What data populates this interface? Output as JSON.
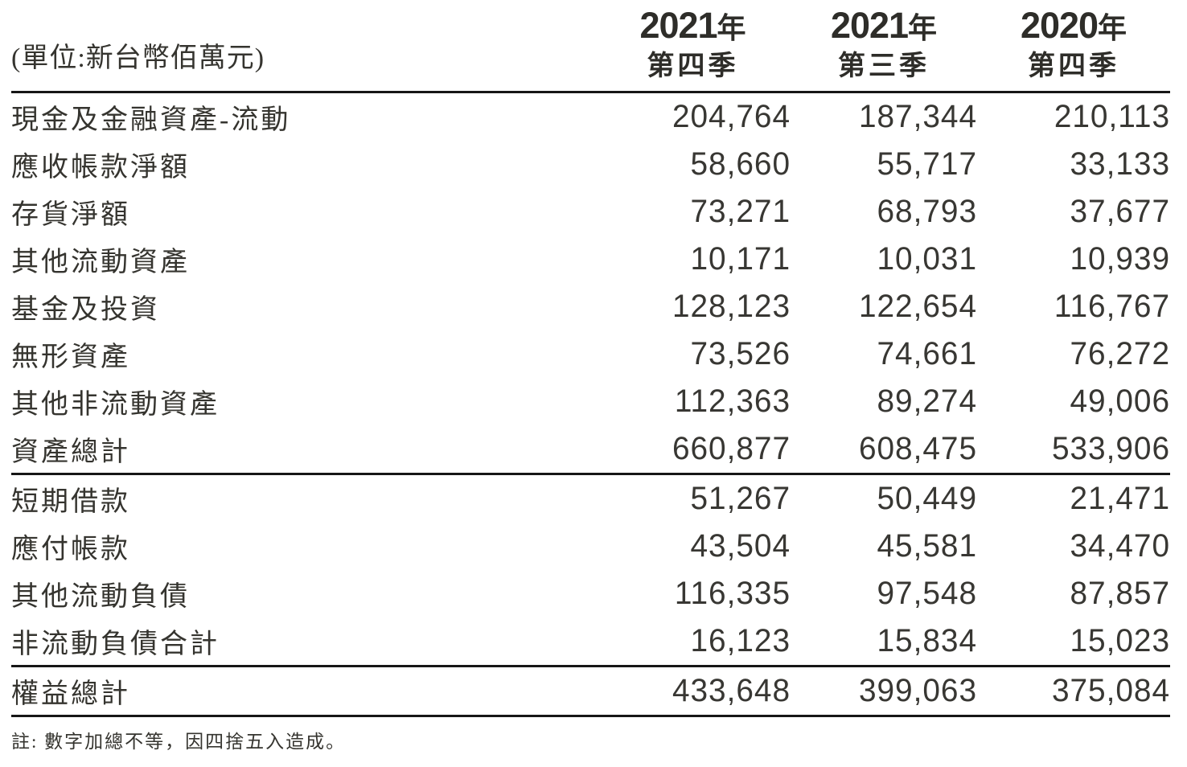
{
  "unit_label": "(單位:新台幣佰萬元)",
  "columns": [
    {
      "year": "2021",
      "year_suffix": "年",
      "quarter": "第四季"
    },
    {
      "year": "2021",
      "year_suffix": "年",
      "quarter": "第三季"
    },
    {
      "year": "2020",
      "year_suffix": "年",
      "quarter": "第四季"
    }
  ],
  "sections": [
    {
      "name": "assets",
      "rows": [
        {
          "label": "現金及金融資產-流動",
          "values": [
            "204,764",
            "187,344",
            "210,113"
          ]
        },
        {
          "label": "應收帳款淨額",
          "values": [
            "58,660",
            "55,717",
            "33,133"
          ]
        },
        {
          "label": "存貨淨額",
          "values": [
            "73,271",
            "68,793",
            "37,677"
          ]
        },
        {
          "label": "其他流動資產",
          "values": [
            "10,171",
            "10,031",
            "10,939"
          ]
        },
        {
          "label": "基金及投資",
          "values": [
            "128,123",
            "122,654",
            "116,767"
          ]
        },
        {
          "label": "無形資產",
          "values": [
            "73,526",
            "74,661",
            "76,272"
          ]
        },
        {
          "label": "其他非流動資產",
          "values": [
            "112,363",
            "89,274",
            "49,006"
          ]
        },
        {
          "label": "資產總計",
          "values": [
            "660,877",
            "608,475",
            "533,906"
          ]
        }
      ]
    },
    {
      "name": "liabilities",
      "rows": [
        {
          "label": "短期借款",
          "values": [
            "51,267",
            "50,449",
            "21,471"
          ]
        },
        {
          "label": "應付帳款",
          "values": [
            "43,504",
            "45,581",
            "34,470"
          ]
        },
        {
          "label": "其他流動負債",
          "values": [
            "116,335",
            "97,548",
            "87,857"
          ]
        },
        {
          "label": "非流動負債合計",
          "values": [
            "16,123",
            "15,834",
            "15,023"
          ]
        }
      ]
    },
    {
      "name": "equity",
      "rows": [
        {
          "label": "權益總計",
          "values": [
            "433,648",
            "399,063",
            "375,084"
          ]
        }
      ]
    }
  ],
  "footnote": "註: 數字加總不等，因四捨五入造成。",
  "colors": {
    "text": "#35342f",
    "rule": "#161616",
    "background": "#ffffff"
  }
}
